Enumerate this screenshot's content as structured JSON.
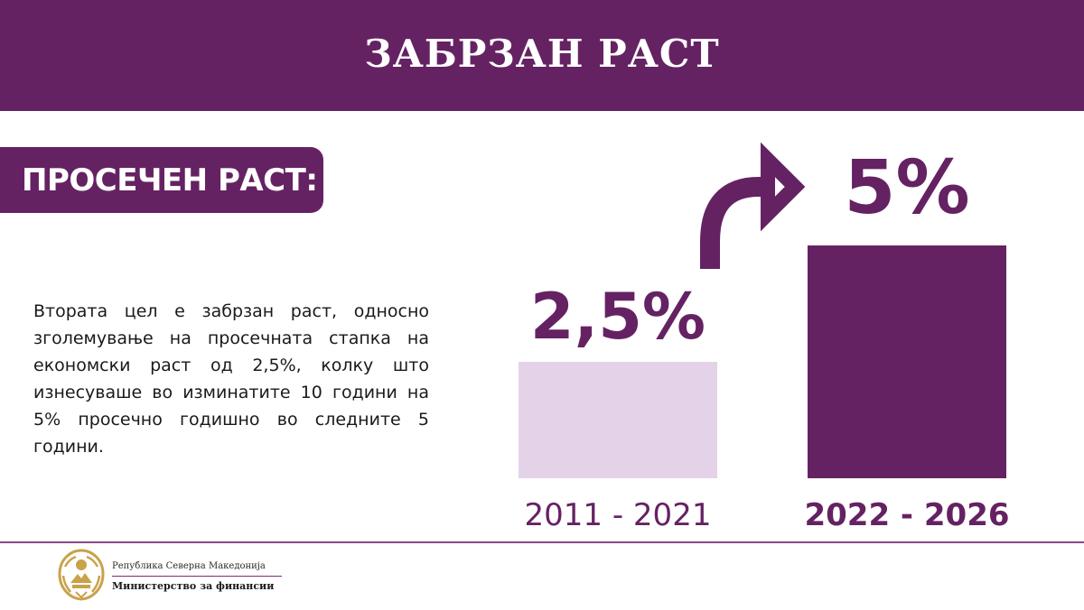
{
  "header": {
    "title": "ЗАБРЗАН РАСТ"
  },
  "label": {
    "text": "ПРОСЕЧЕН РАСТ:"
  },
  "description": "Втората цел е забрзан раст, односно зголемување на просечната стапка на економски раст од 2,5%, колку што изнесуваше во изминатите 10 години на 5% просечно годишно во следните 5 години.",
  "chart_data": {
    "type": "bar",
    "title": "",
    "xlabel": "",
    "ylabel": "",
    "categories": [
      "2011 - 2021",
      "2022 - 2026"
    ],
    "values": [
      2.5,
      5
    ],
    "data_labels": [
      "2,5%",
      "5%"
    ],
    "unit": "%",
    "ylim": [
      0,
      5
    ],
    "grid": false,
    "legend": "none",
    "colors": [
      "#e4d3e8",
      "#652263"
    ],
    "label_color": "#652263"
  },
  "footer": {
    "republic": "Република Северна Македонија",
    "ministry": "Министерство за финансии"
  },
  "colors": {
    "brand_purple": "#652263",
    "light_purple": "#e4d3e8",
    "emblem_gold": "#c9a24a"
  },
  "icons": {
    "arrow": "curved-arrow-icon",
    "emblem": "coat-of-arms-icon"
  }
}
